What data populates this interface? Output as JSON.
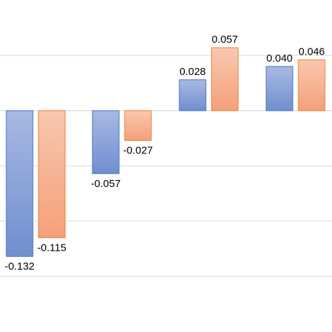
{
  "chart_data": {
    "type": "bar",
    "title": "",
    "xlabel": "",
    "ylabel": "",
    "categories": [
      "",
      "",
      "",
      ""
    ],
    "ylim": [
      -0.15,
      0.06
    ],
    "grid": true,
    "legend": "none",
    "series": [
      {
        "color_top": "#a9b9e2",
        "color_bottom": "#6f8fd0",
        "stroke": "#4a6fc0",
        "values": [
          -0.132,
          -0.057,
          0.028,
          0.04
        ],
        "labels": [
          "-0.132",
          "-0.057",
          "0.028",
          "0.040"
        ]
      },
      {
        "color_top": "#f9c8af",
        "color_bottom": "#f4a07a",
        "stroke": "#ed7d31",
        "values": [
          -0.115,
          -0.027,
          0.057,
          0.046
        ],
        "labels": [
          "-0.115",
          "-0.027",
          "0.057",
          "0.046"
        ]
      }
    ]
  }
}
